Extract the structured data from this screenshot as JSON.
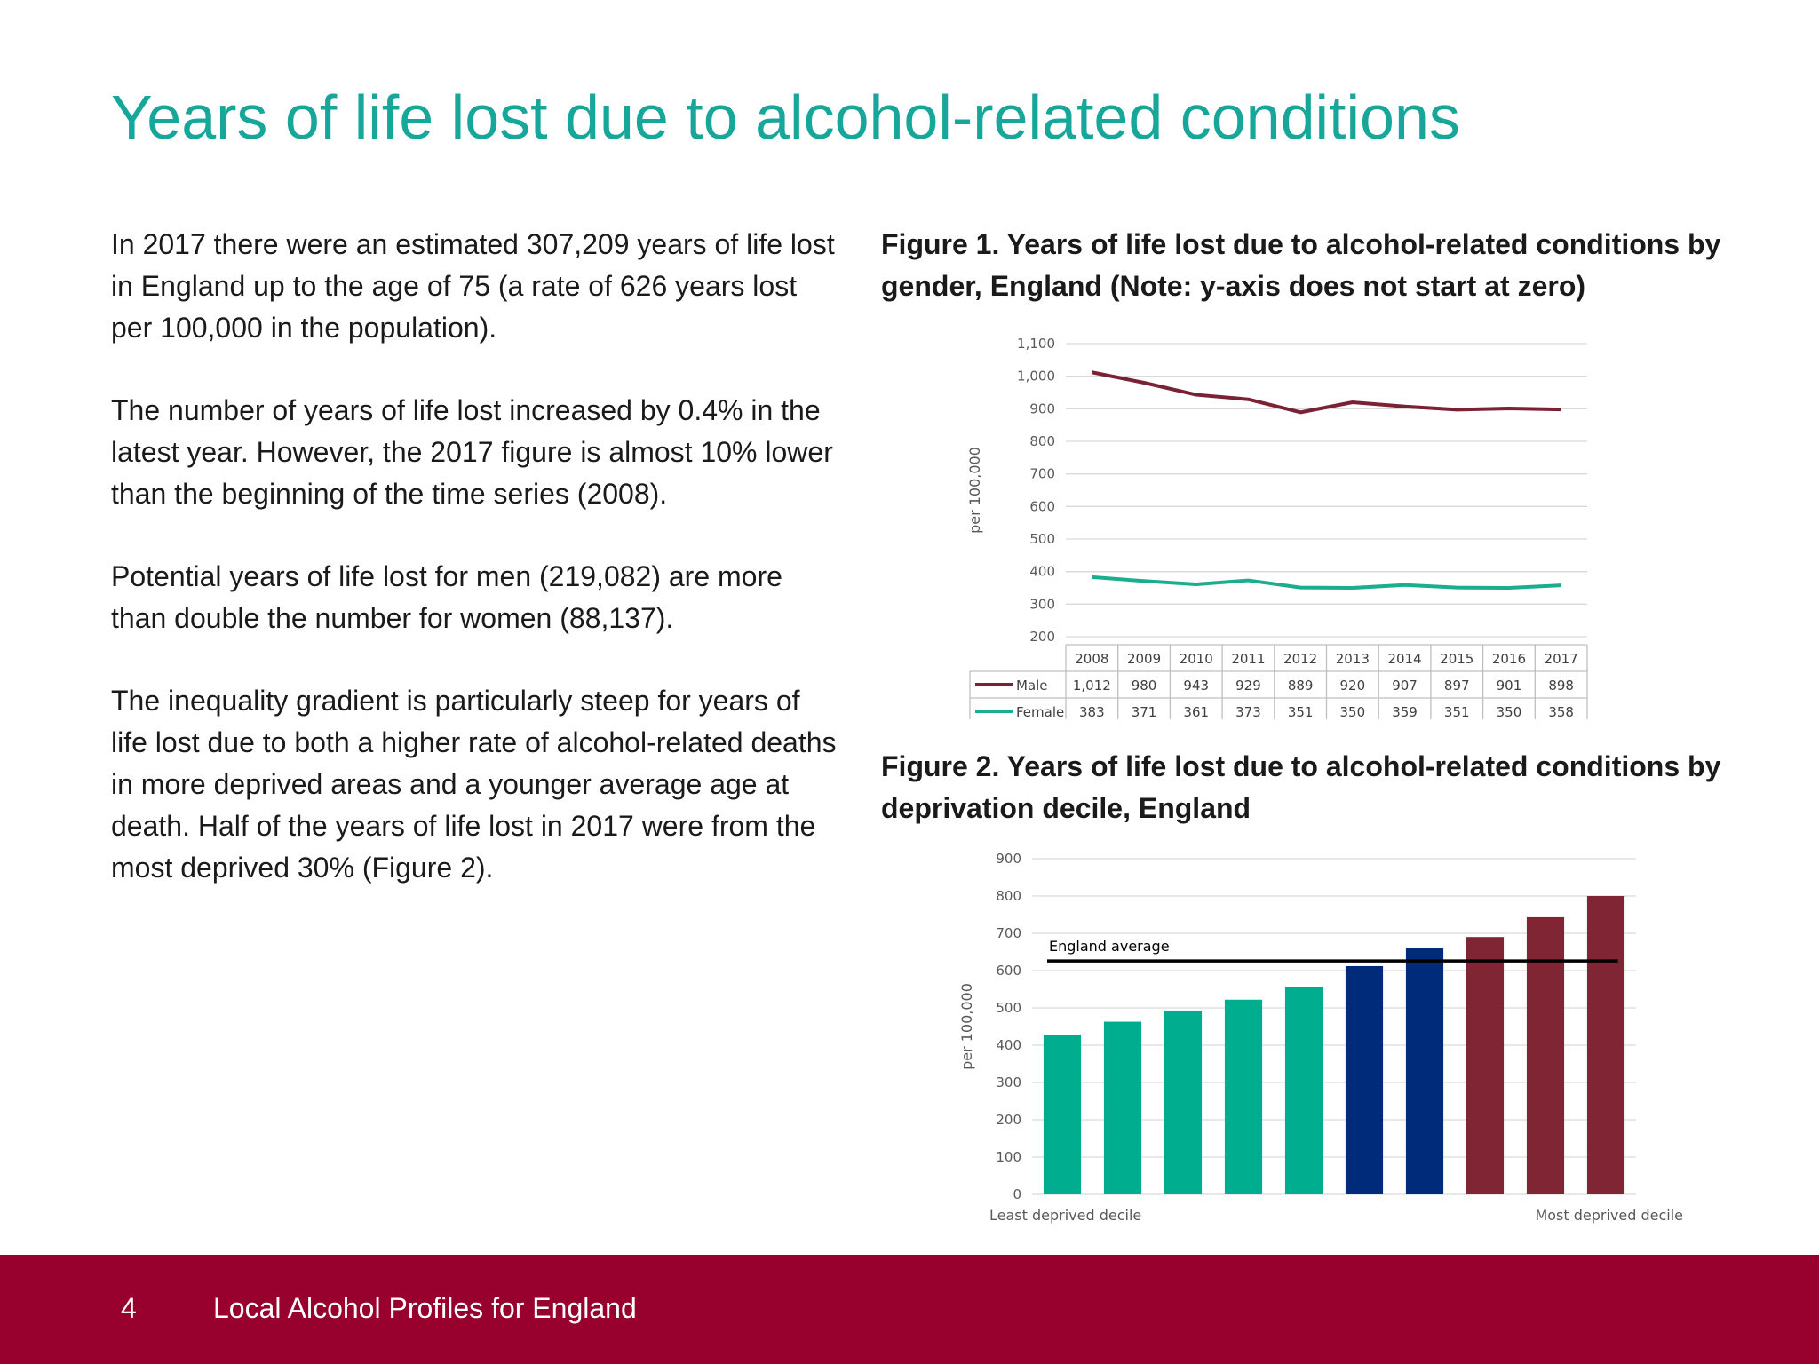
{
  "slide": {
    "title": "Years of life lost due to alcohol-related conditions",
    "paragraphs": [
      "In 2017 there were an estimated 307,209 years of life lost in England up to the age of 75 (a rate of 626 years lost per 100,000 in the population).",
      "The number of years of life lost increased by 0.4% in the latest year. However, the 2017 figure is almost 10% lower than the beginning of the time series (2008).",
      "Potential years of life lost for men (219,082) are more than double the number for women (88,137).",
      "The inequality gradient is particularly steep for years of life lost due to both a higher rate of alcohol-related deaths in more deprived areas and a younger average age at death. Half of the years of life lost in 2017 were from the most deprived 30% (Figure 2)."
    ],
    "figure1_caption": "Figure 1. Years of life lost due to alcohol-related conditions by gender, England (Note: y-axis does not start at zero)",
    "figure2_caption": "Figure 2. Years of life lost due to alcohol-related conditions by deprivation decile, England"
  },
  "footer": {
    "page_number": "4",
    "text": "Local Alcohol Profiles for England"
  },
  "chart_data": [
    {
      "type": "line",
      "ylabel": "per 100,000",
      "ylim": [
        200,
        1100
      ],
      "yticks": [
        "200",
        "300",
        "400",
        "500",
        "600",
        "700",
        "800",
        "900",
        "1,000",
        "1,100"
      ],
      "x": [
        "2008",
        "2009",
        "2010",
        "2011",
        "2012",
        "2013",
        "2014",
        "2015",
        "2016",
        "2017"
      ],
      "series": [
        {
          "name": "Male",
          "color": "#7b2134",
          "values": [
            1012,
            980,
            943,
            929,
            889,
            920,
            907,
            897,
            901,
            898
          ],
          "labels": [
            "1,012",
            "980",
            "943",
            "929",
            "889",
            "920",
            "907",
            "897",
            "901",
            "898"
          ]
        },
        {
          "name": "Female",
          "color": "#1aae8f",
          "values": [
            383,
            371,
            361,
            373,
            351,
            350,
            359,
            351,
            350,
            358
          ],
          "labels": [
            "383",
            "371",
            "361",
            "373",
            "351",
            "350",
            "359",
            "351",
            "350",
            "358"
          ]
        }
      ],
      "grid": true,
      "data_table": true
    },
    {
      "type": "bar",
      "ylabel": "per 100,000",
      "ylim": [
        0,
        900
      ],
      "yticks": [
        "0",
        "100",
        "200",
        "300",
        "400",
        "500",
        "600",
        "700",
        "800",
        "900"
      ],
      "values": [
        428,
        463,
        493,
        522,
        556,
        612,
        661,
        690,
        743,
        800
      ],
      "colors": [
        "#00ae8f",
        "#00ae8f",
        "#00ae8f",
        "#00ae8f",
        "#00ae8f",
        "#002a7a",
        "#002a7a",
        "#7f2534",
        "#7f2534",
        "#7f2534"
      ],
      "average": 626,
      "average_label": "England average",
      "x_left_label": "Least deprived decile",
      "x_right_label": "Most deprived decile",
      "grid": true
    }
  ]
}
